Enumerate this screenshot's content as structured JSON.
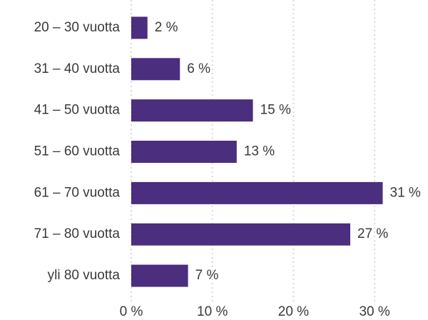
{
  "chart_data": {
    "type": "bar",
    "orientation": "horizontal",
    "categories": [
      "20 – 30 vuotta",
      "31 – 40 vuotta",
      "41 – 50 vuotta",
      "51 – 60 vuotta",
      "61 – 70 vuotta",
      "71 – 80 vuotta",
      "yli 80 vuotta"
    ],
    "values": [
      2,
      6,
      15,
      13,
      31,
      27,
      7
    ],
    "value_labels": [
      "2 %",
      "6 %",
      "15 %",
      "13 %",
      "31 %",
      "27 %",
      "7 %"
    ],
    "color": "#4b2e7e",
    "xlim": [
      0,
      35
    ],
    "xticks": [
      {
        "value": 0,
        "label": "0 %"
      },
      {
        "value": 10,
        "label": "10 %"
      },
      {
        "value": 20,
        "label": "20 %"
      },
      {
        "value": 30,
        "label": "30 %"
      }
    ],
    "grid": true
  }
}
